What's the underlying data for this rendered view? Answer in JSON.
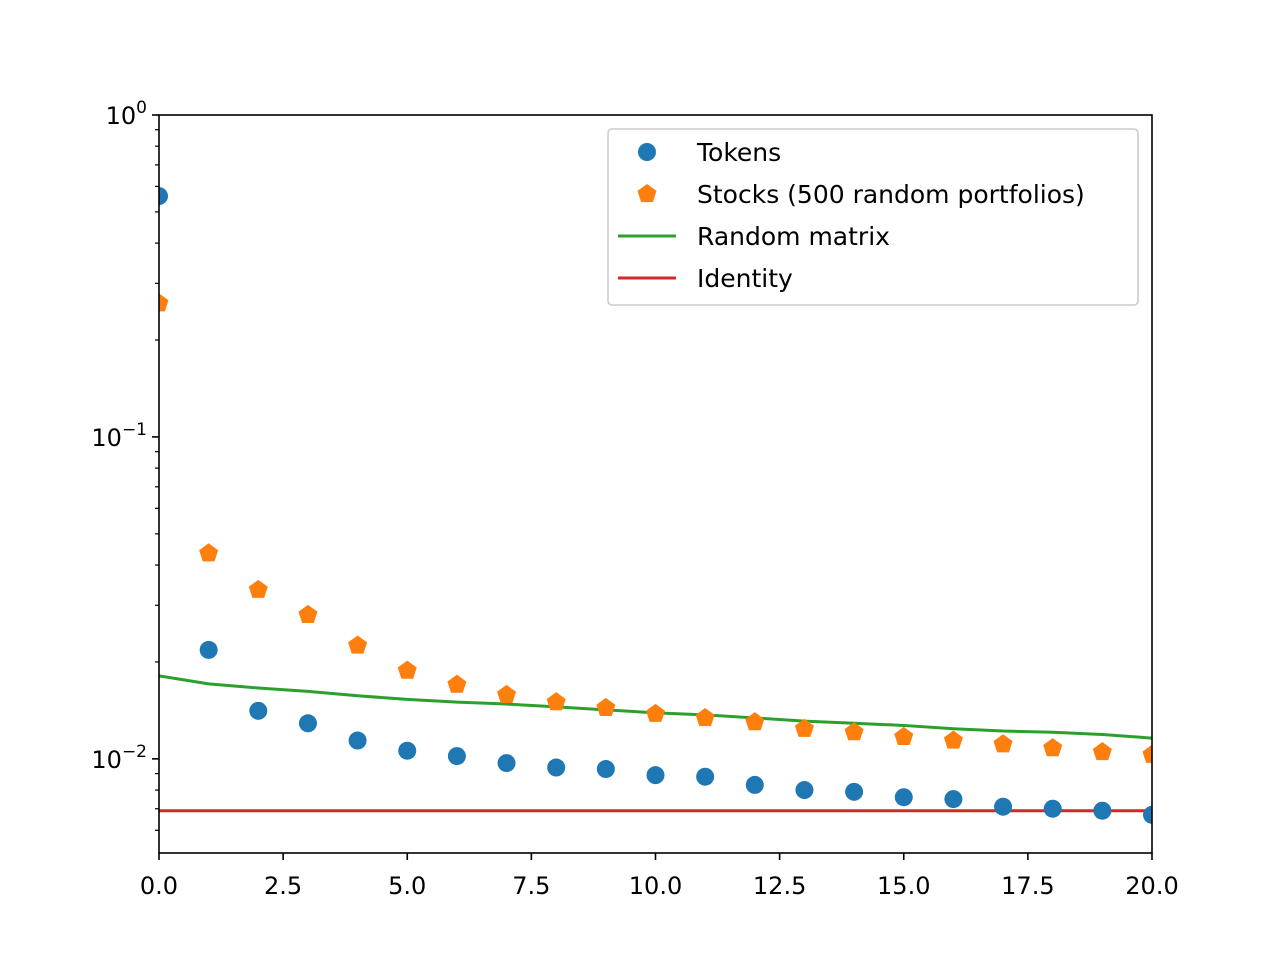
{
  "chart_data": {
    "type": "scatter",
    "title": "",
    "xlabel": "",
    "ylabel": "",
    "xscale": "linear",
    "yscale": "log",
    "xlim": [
      0,
      20
    ],
    "ylim": [
      0.0051,
      1.0
    ],
    "grid": false,
    "legend_position": "top-right",
    "x_ticks": [
      "0.0",
      "2.5",
      "5.0",
      "7.5",
      "10.0",
      "12.5",
      "15.0",
      "17.5",
      "20.0"
    ],
    "y_ticks": [
      {
        "value": 1.0,
        "base": "10",
        "exp": "0"
      },
      {
        "value": 0.1,
        "base": "10",
        "exp": "−1"
      },
      {
        "value": 0.01,
        "base": "10",
        "exp": "−2"
      }
    ],
    "series": [
      {
        "name": "Tokens",
        "kind": "marker",
        "marker": "circle",
        "color": "#1f77b4",
        "x": [
          0,
          1,
          2,
          3,
          4,
          5,
          6,
          7,
          8,
          9,
          10,
          11,
          12,
          13,
          14,
          15,
          16,
          17,
          18,
          19,
          20
        ],
        "values": [
          0.56,
          0.0218,
          0.0141,
          0.0129,
          0.0114,
          0.0106,
          0.0102,
          0.0097,
          0.0094,
          0.0093,
          0.0089,
          0.0088,
          0.0083,
          0.008,
          0.0079,
          0.0076,
          0.0075,
          0.0071,
          0.007,
          0.0069,
          0.0067
        ]
      },
      {
        "name": "Stocks (500 random portfolios)",
        "kind": "marker",
        "marker": "pentagon",
        "color": "#ff7f0e",
        "x": [
          0,
          1,
          2,
          3,
          4,
          5,
          6,
          7,
          8,
          9,
          10,
          11,
          12,
          13,
          14,
          15,
          16,
          17,
          18,
          19,
          20
        ],
        "values": [
          0.26,
          0.0435,
          0.0335,
          0.028,
          0.0225,
          0.0188,
          0.017,
          0.0158,
          0.015,
          0.0144,
          0.0138,
          0.0134,
          0.013,
          0.0124,
          0.0121,
          0.0117,
          0.0114,
          0.0111,
          0.0108,
          0.0105,
          0.0103
        ]
      },
      {
        "name": "Random matrix",
        "kind": "line",
        "color": "#2ca02c",
        "x": [
          0,
          1,
          2,
          3,
          4,
          5,
          6,
          7,
          8,
          9,
          10,
          11,
          12,
          13,
          14,
          15,
          16,
          17,
          18,
          19,
          20
        ],
        "values": [
          0.0181,
          0.0171,
          0.0166,
          0.0162,
          0.0157,
          0.0153,
          0.015,
          0.0148,
          0.0145,
          0.0142,
          0.0139,
          0.0137,
          0.0134,
          0.0131,
          0.0129,
          0.0127,
          0.0124,
          0.0122,
          0.0121,
          0.0119,
          0.0116
        ]
      },
      {
        "name": "Identity",
        "kind": "line",
        "color": "#d62728",
        "x": [
          0,
          20
        ],
        "values": [
          0.0069,
          0.0069
        ]
      }
    ]
  }
}
